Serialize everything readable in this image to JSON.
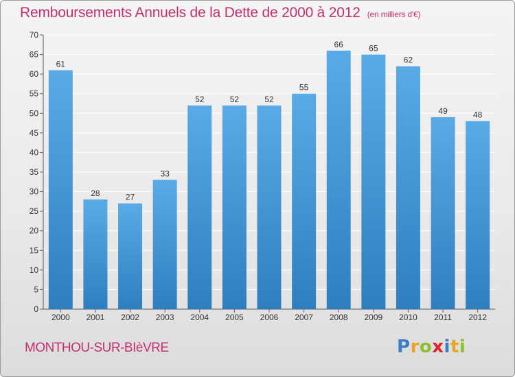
{
  "title": "Remboursements Annuels de la Dette de 2000 à 2012",
  "unit_note": "(en milliers d'€)",
  "commune": "MONTHOU-SUR-BIèVRE",
  "logo": {
    "letters": [
      "P",
      "r",
      "o",
      "x",
      "i",
      "t",
      "i"
    ],
    "colors": [
      "#3a7fc4",
      "#e8a320",
      "#8bbf2f",
      "#d9262c",
      "#3a7fc4",
      "#e8a320",
      "#8bbf2f"
    ]
  },
  "colors": {
    "title": "#c3306e",
    "bar_top": "#5aaae6",
    "bar_bottom": "#2f7fc0",
    "grid": "#ffffff"
  },
  "chart_data": {
    "type": "bar",
    "categories": [
      "2000",
      "2001",
      "2002",
      "2003",
      "2004",
      "2005",
      "2006",
      "2007",
      "2008",
      "2009",
      "2010",
      "2011",
      "2012"
    ],
    "values": [
      61,
      28,
      27,
      33,
      52,
      52,
      52,
      55,
      66,
      65,
      62,
      49,
      48
    ],
    "ylim": [
      0,
      70
    ],
    "yticks": [
      0,
      5,
      10,
      15,
      20,
      25,
      30,
      35,
      40,
      45,
      50,
      55,
      60,
      65,
      70
    ],
    "grid": true,
    "data_labels": true
  }
}
